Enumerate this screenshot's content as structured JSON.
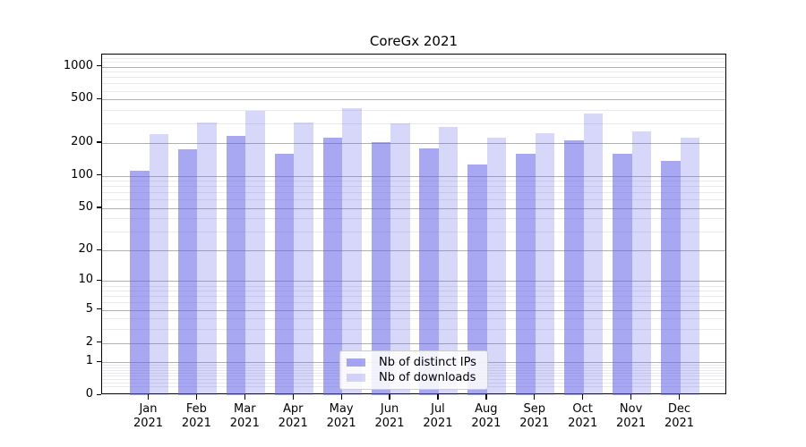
{
  "figure": {
    "title": "CoreGx 2021"
  },
  "chart_data": {
    "type": "bar",
    "title": "CoreGx 2021",
    "categories": [
      "Jan",
      "Feb",
      "Mar",
      "Apr",
      "May",
      "Jun",
      "Jul",
      "Aug",
      "Sep",
      "Oct",
      "Nov",
      "Dec"
    ],
    "category_year": "2021",
    "series": [
      {
        "name": "Nb of distinct IPs",
        "color": "#5f5fe8",
        "alpha": 0.55,
        "values": [
          111,
          176,
          234,
          160,
          224,
          205,
          178,
          126,
          159,
          212,
          158,
          137
        ]
      },
      {
        "name": "Nb of downloads",
        "color": "#5f5fe8",
        "alpha": 0.25,
        "values": [
          241,
          309,
          392,
          310,
          418,
          305,
          282,
          223,
          245,
          373,
          257,
          223
        ]
      }
    ],
    "yscale": "log1p",
    "ylim": [
      0,
      1290
    ],
    "y_ticks": [
      0,
      1,
      2,
      5,
      10,
      20,
      50,
      100,
      200,
      500,
      1000
    ],
    "y_minor_ticks": [
      0.2,
      0.3,
      0.4,
      0.5,
      0.6,
      0.7,
      0.8,
      0.9,
      3,
      4,
      6,
      7,
      8,
      9,
      30,
      40,
      60,
      70,
      80,
      90,
      300,
      400,
      600,
      700,
      800,
      900,
      1100,
      1200
    ],
    "grid": true,
    "legend_position": "lower center",
    "colors": {
      "major_grid": "#b0b0b0",
      "minor_grid": "#e9e9ef",
      "spine": "#000000"
    }
  }
}
